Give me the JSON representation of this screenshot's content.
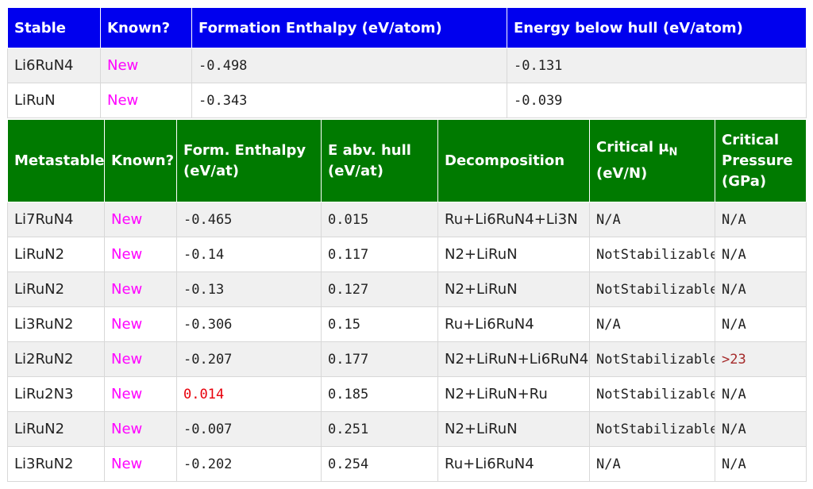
{
  "stable_table": {
    "headers": [
      "Stable",
      "Known?",
      "Formation Enthalpy (eV/atom)",
      "Energy below hull (eV/atom)"
    ],
    "rows": [
      {
        "name": "Li6RuN4",
        "known": "New",
        "enthalpy": "-0.498",
        "hull": "-0.131"
      },
      {
        "name": "LiRuN",
        "known": "New",
        "enthalpy": "-0.343",
        "hull": "-0.039"
      }
    ]
  },
  "meta_table": {
    "headers": {
      "name": "Metastable",
      "known": "Known?",
      "enthalpy_line1": "Form. Enthalpy",
      "enthalpy_line2": "(eV/at)",
      "hull_line1": "E abv. hull",
      "hull_line2": "(eV/at)",
      "decomp": "Decomposition",
      "mu_line1": "Critical μ",
      "mu_sub": "N",
      "mu_line2": "(eV/N)",
      "pressure_line1": "Critical",
      "pressure_line2": "Pressure",
      "pressure_line3": "(GPa)"
    },
    "rows": [
      {
        "name": "Li7RuN4",
        "known": "New",
        "enthalpy": "-0.465",
        "hull": "0.015",
        "decomp": "Ru+Li6RuN4+Li3N",
        "mu": "N/A",
        "pressure": "N/A"
      },
      {
        "name": "LiRuN2",
        "known": "New",
        "enthalpy": "-0.14",
        "hull": "0.117",
        "decomp": "N2+LiRuN",
        "mu": "NotStabilizable",
        "pressure": "N/A"
      },
      {
        "name": "LiRuN2",
        "known": "New",
        "enthalpy": "-0.13",
        "hull": "0.127",
        "decomp": "N2+LiRuN",
        "mu": "NotStabilizable",
        "pressure": "N/A"
      },
      {
        "name": "Li3RuN2",
        "known": "New",
        "enthalpy": "-0.306",
        "hull": "0.15",
        "decomp": "Ru+Li6RuN4",
        "mu": "N/A",
        "pressure": "N/A"
      },
      {
        "name": "Li2RuN2",
        "known": "New",
        "enthalpy": "-0.207",
        "hull": "0.177",
        "decomp": "N2+LiRuN+Li6RuN4",
        "mu": "NotStabilizable",
        "pressure": ">23"
      },
      {
        "name": "LiRu2N3",
        "known": "New",
        "enthalpy": "0.014",
        "hull": "0.185",
        "decomp": "N2+LiRuN+Ru",
        "mu": "NotStabilizable",
        "pressure": "N/A"
      },
      {
        "name": "LiRuN2",
        "known": "New",
        "enthalpy": "-0.007",
        "hull": "0.251",
        "decomp": "N2+LiRuN",
        "mu": "NotStabilizable",
        "pressure": "N/A"
      },
      {
        "name": "Li3RuN2",
        "known": "New",
        "enthalpy": "-0.202",
        "hull": "0.254",
        "decomp": "Ru+Li6RuN4",
        "mu": "N/A",
        "pressure": "N/A"
      }
    ]
  }
}
